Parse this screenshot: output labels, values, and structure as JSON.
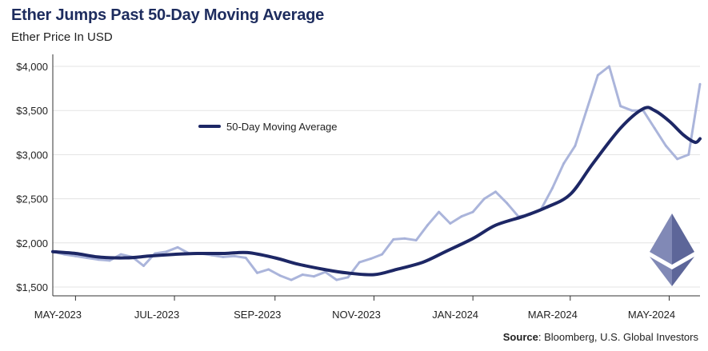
{
  "title": "Ether Jumps Past 50-Day Moving Average",
  "subtitle": "Ether Price In USD",
  "source_label": "Source",
  "source_text": ": Bloomberg, U.S. Global Investors",
  "logo": "ethereum-logo",
  "colors": {
    "title": "#1d2c5e",
    "price": "#a7b1d9",
    "ma": "#1d2765",
    "logo": "#6f78a8"
  },
  "chart_data": {
    "type": "line",
    "xlim": [
      "2023-04-17",
      "2024-05-20"
    ],
    "ylim": [
      1400,
      4100
    ],
    "yticks": [
      1500,
      2000,
      2500,
      3000,
      3500,
      4000
    ],
    "ytick_labels": [
      "$1,500",
      "$2,000",
      "$2,500",
      "$3,000",
      "$3,500",
      "$4,000"
    ],
    "xticks": [
      "2023-05-01",
      "2023-07-01",
      "2023-09-01",
      "2023-11-01",
      "2024-01-01",
      "2024-03-01",
      "2024-05-01"
    ],
    "xtick_labels": [
      "MAY-2023",
      "JUL-2023",
      "SEP-2023",
      "NOV-2023",
      "JAN-2024",
      "MAR-2024",
      "MAY-2024"
    ],
    "legend": {
      "label": "50-Day Moving Average",
      "placement": "upper-left"
    },
    "series": [
      {
        "name": "Ether Price",
        "points": [
          [
            "2023-04-17",
            1900
          ],
          [
            "2023-04-24",
            1870
          ],
          [
            "2023-05-01",
            1850
          ],
          [
            "2023-05-08",
            1830
          ],
          [
            "2023-05-15",
            1810
          ],
          [
            "2023-05-22",
            1800
          ],
          [
            "2023-05-29",
            1870
          ],
          [
            "2023-06-05",
            1840
          ],
          [
            "2023-06-12",
            1740
          ],
          [
            "2023-06-19",
            1880
          ],
          [
            "2023-06-26",
            1900
          ],
          [
            "2023-07-03",
            1950
          ],
          [
            "2023-07-10",
            1880
          ],
          [
            "2023-07-17",
            1880
          ],
          [
            "2023-07-24",
            1860
          ],
          [
            "2023-07-31",
            1840
          ],
          [
            "2023-08-07",
            1850
          ],
          [
            "2023-08-14",
            1830
          ],
          [
            "2023-08-21",
            1660
          ],
          [
            "2023-08-28",
            1700
          ],
          [
            "2023-09-04",
            1630
          ],
          [
            "2023-09-11",
            1580
          ],
          [
            "2023-09-18",
            1640
          ],
          [
            "2023-09-25",
            1620
          ],
          [
            "2023-10-02",
            1670
          ],
          [
            "2023-10-09",
            1580
          ],
          [
            "2023-10-16",
            1610
          ],
          [
            "2023-10-23",
            1780
          ],
          [
            "2023-10-30",
            1820
          ],
          [
            "2023-11-06",
            1870
          ],
          [
            "2023-11-13",
            2040
          ],
          [
            "2023-11-20",
            2050
          ],
          [
            "2023-11-27",
            2030
          ],
          [
            "2023-12-04",
            2200
          ],
          [
            "2023-12-11",
            2350
          ],
          [
            "2023-12-18",
            2220
          ],
          [
            "2023-12-25",
            2300
          ],
          [
            "2024-01-01",
            2350
          ],
          [
            "2024-01-08",
            2500
          ],
          [
            "2024-01-15",
            2580
          ],
          [
            "2024-01-22",
            2450
          ],
          [
            "2024-01-29",
            2300
          ],
          [
            "2024-02-05",
            2320
          ],
          [
            "2024-02-12",
            2380
          ],
          [
            "2024-02-19",
            2620
          ],
          [
            "2024-02-26",
            2900
          ],
          [
            "2024-03-04",
            3100
          ],
          [
            "2024-03-11",
            3500
          ],
          [
            "2024-03-18",
            3900
          ],
          [
            "2024-03-25",
            4000
          ],
          [
            "2024-04-01",
            3550
          ],
          [
            "2024-04-08",
            3500
          ],
          [
            "2024-04-15",
            3500
          ],
          [
            "2024-04-22",
            3300
          ],
          [
            "2024-04-29",
            3100
          ],
          [
            "2024-05-06",
            2950
          ],
          [
            "2024-05-13",
            3000
          ],
          [
            "2024-05-20",
            3800
          ]
        ]
      },
      {
        "name": "50-Day Moving Average",
        "points": [
          [
            "2023-04-17",
            1900
          ],
          [
            "2023-05-01",
            1880
          ],
          [
            "2023-05-15",
            1840
          ],
          [
            "2023-06-01",
            1830
          ],
          [
            "2023-06-15",
            1850
          ],
          [
            "2023-07-01",
            1870
          ],
          [
            "2023-07-15",
            1880
          ],
          [
            "2023-08-01",
            1880
          ],
          [
            "2023-08-15",
            1890
          ],
          [
            "2023-09-01",
            1830
          ],
          [
            "2023-09-15",
            1760
          ],
          [
            "2023-10-01",
            1700
          ],
          [
            "2023-10-15",
            1660
          ],
          [
            "2023-11-01",
            1640
          ],
          [
            "2023-11-15",
            1700
          ],
          [
            "2023-12-01",
            1780
          ],
          [
            "2023-12-15",
            1900
          ],
          [
            "2024-01-01",
            2050
          ],
          [
            "2024-01-15",
            2200
          ],
          [
            "2024-02-01",
            2300
          ],
          [
            "2024-02-15",
            2400
          ],
          [
            "2024-03-01",
            2550
          ],
          [
            "2024-03-15",
            2900
          ],
          [
            "2024-04-01",
            3300
          ],
          [
            "2024-04-15",
            3520
          ],
          [
            "2024-04-22",
            3500
          ],
          [
            "2024-05-01",
            3380
          ],
          [
            "2024-05-10",
            3220
          ],
          [
            "2024-05-17",
            3140
          ],
          [
            "2024-05-20",
            3180
          ]
        ]
      }
    ]
  }
}
